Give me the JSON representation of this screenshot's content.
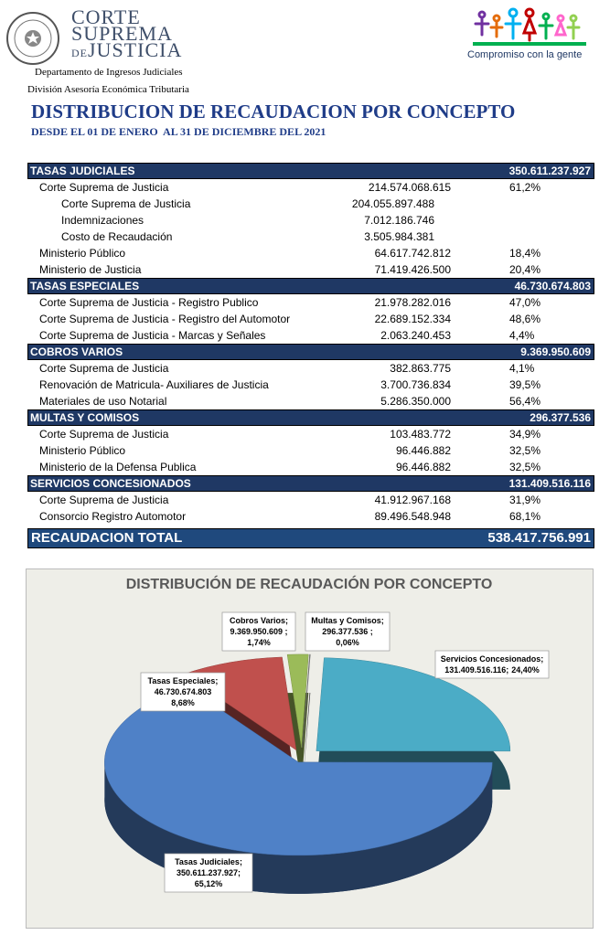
{
  "header": {
    "org_line1": "CORTE",
    "org_line2": "SUPREMA",
    "org_line3_prefix": "DE",
    "org_line3": "JUSTICIA",
    "slogan": "Compromiso con la gente",
    "department": "Departamento de Ingresos Judiciales",
    "division": "División Asesoría Económica Tributaria",
    "title": "DISTRIBUCION DE RECAUDACION POR CONCEPTO",
    "subtitle": "DESDE EL 01 DE ENERO  AL 31 DE DICIEMBRE DEL 2021"
  },
  "table": {
    "sections": [
      {
        "title": "TASAS JUDICIALES",
        "total": "350.611.237.927",
        "rows": [
          {
            "label": "Corte Suprema de Justicia",
            "amount": "214.574.068.615",
            "pct": "61,2%",
            "children": [
              {
                "label": "Corte Suprema de Justicia",
                "amount": "204.055.897.488"
              },
              {
                "label": "Indemnizaciones",
                "amount": "7.012.186.746"
              },
              {
                "label": "Costo de Recaudación",
                "amount": "3.505.984.381"
              }
            ]
          },
          {
            "label": "Ministerio Público",
            "amount": "64.617.742.812",
            "pct": "18,4%"
          },
          {
            "label": "Ministerio de Justicia",
            "amount": "71.419.426.500",
            "pct": "20,4%"
          }
        ]
      },
      {
        "title": "TASAS ESPECIALES",
        "total": "46.730.674.803",
        "rows": [
          {
            "label": "Corte Suprema de Justicia - Registro Publico",
            "amount": "21.978.282.016",
            "pct": "47,0%"
          },
          {
            "label": "Corte Suprema de Justicia - Registro del Automotor",
            "amount": "22.689.152.334",
            "pct": "48,6%"
          },
          {
            "label": "Corte Suprema de Justicia - Marcas y Señales",
            "amount": "2.063.240.453",
            "pct": "4,4%"
          }
        ]
      },
      {
        "title": "COBROS VARIOS",
        "total": "9.369.950.609",
        "rows": [
          {
            "label": "Corte Suprema de Justicia",
            "amount": "382.863.775",
            "pct": "4,1%"
          },
          {
            "label": "Renovación de Matricula- Auxiliares de Justicia",
            "amount": "3.700.736.834",
            "pct": "39,5%"
          },
          {
            "label": "Materiales de uso Notarial",
            "amount": "5.286.350.000",
            "pct": "56,4%"
          }
        ]
      },
      {
        "title": "MULTAS Y COMISOS",
        "total": "296.377.536",
        "rows": [
          {
            "label": "Corte Suprema de Justicia",
            "amount": "103.483.772",
            "pct": "34,9%"
          },
          {
            "label": "Ministerio Público",
            "amount": "96.446.882",
            "pct": "32,5%"
          },
          {
            "label": "Ministerio de la Defensa Publica",
            "amount": "96.446.882",
            "pct": "32,5%"
          }
        ]
      },
      {
        "title": "SERVICIOS CONCESIONADOS",
        "total": "131.409.516.116",
        "rows": [
          {
            "label": "Corte Suprema de Justicia",
            "amount": "41.912.967.168",
            "pct": "31,9%"
          },
          {
            "label": "Consorcio Registro Automotor",
            "amount": "89.496.548.948",
            "pct": "68,1%"
          }
        ]
      }
    ],
    "total": {
      "label": "RECAUDACION TOTAL",
      "value": "538.417.756.991"
    }
  },
  "chart_data": {
    "type": "pie",
    "title": "DISTRIBUCIÓN DE RECAUDACIÓN POR CONCEPTO",
    "categories": [
      "Servicios Concesionados;",
      "Tasas Judiciales;",
      "Tasas Especiales;",
      "Cobros Varios;",
      "Multas y Comisos;"
    ],
    "amounts": [
      "131.409.516.116;",
      "350.611.237.927;",
      "46.730.674.803",
      "9.369.950.609 ;",
      "296.377.536 ;"
    ],
    "values": [
      24.4,
      65.12,
      8.68,
      1.74,
      0.06
    ],
    "value_labels": [
      "24,40%",
      "65,12%",
      "8,68%",
      "1,74%",
      "0,06%"
    ],
    "colors": [
      "#4bacc6",
      "#4f81c7",
      "#c0504d",
      "#9bbb59",
      "#8c8c8c"
    ]
  }
}
